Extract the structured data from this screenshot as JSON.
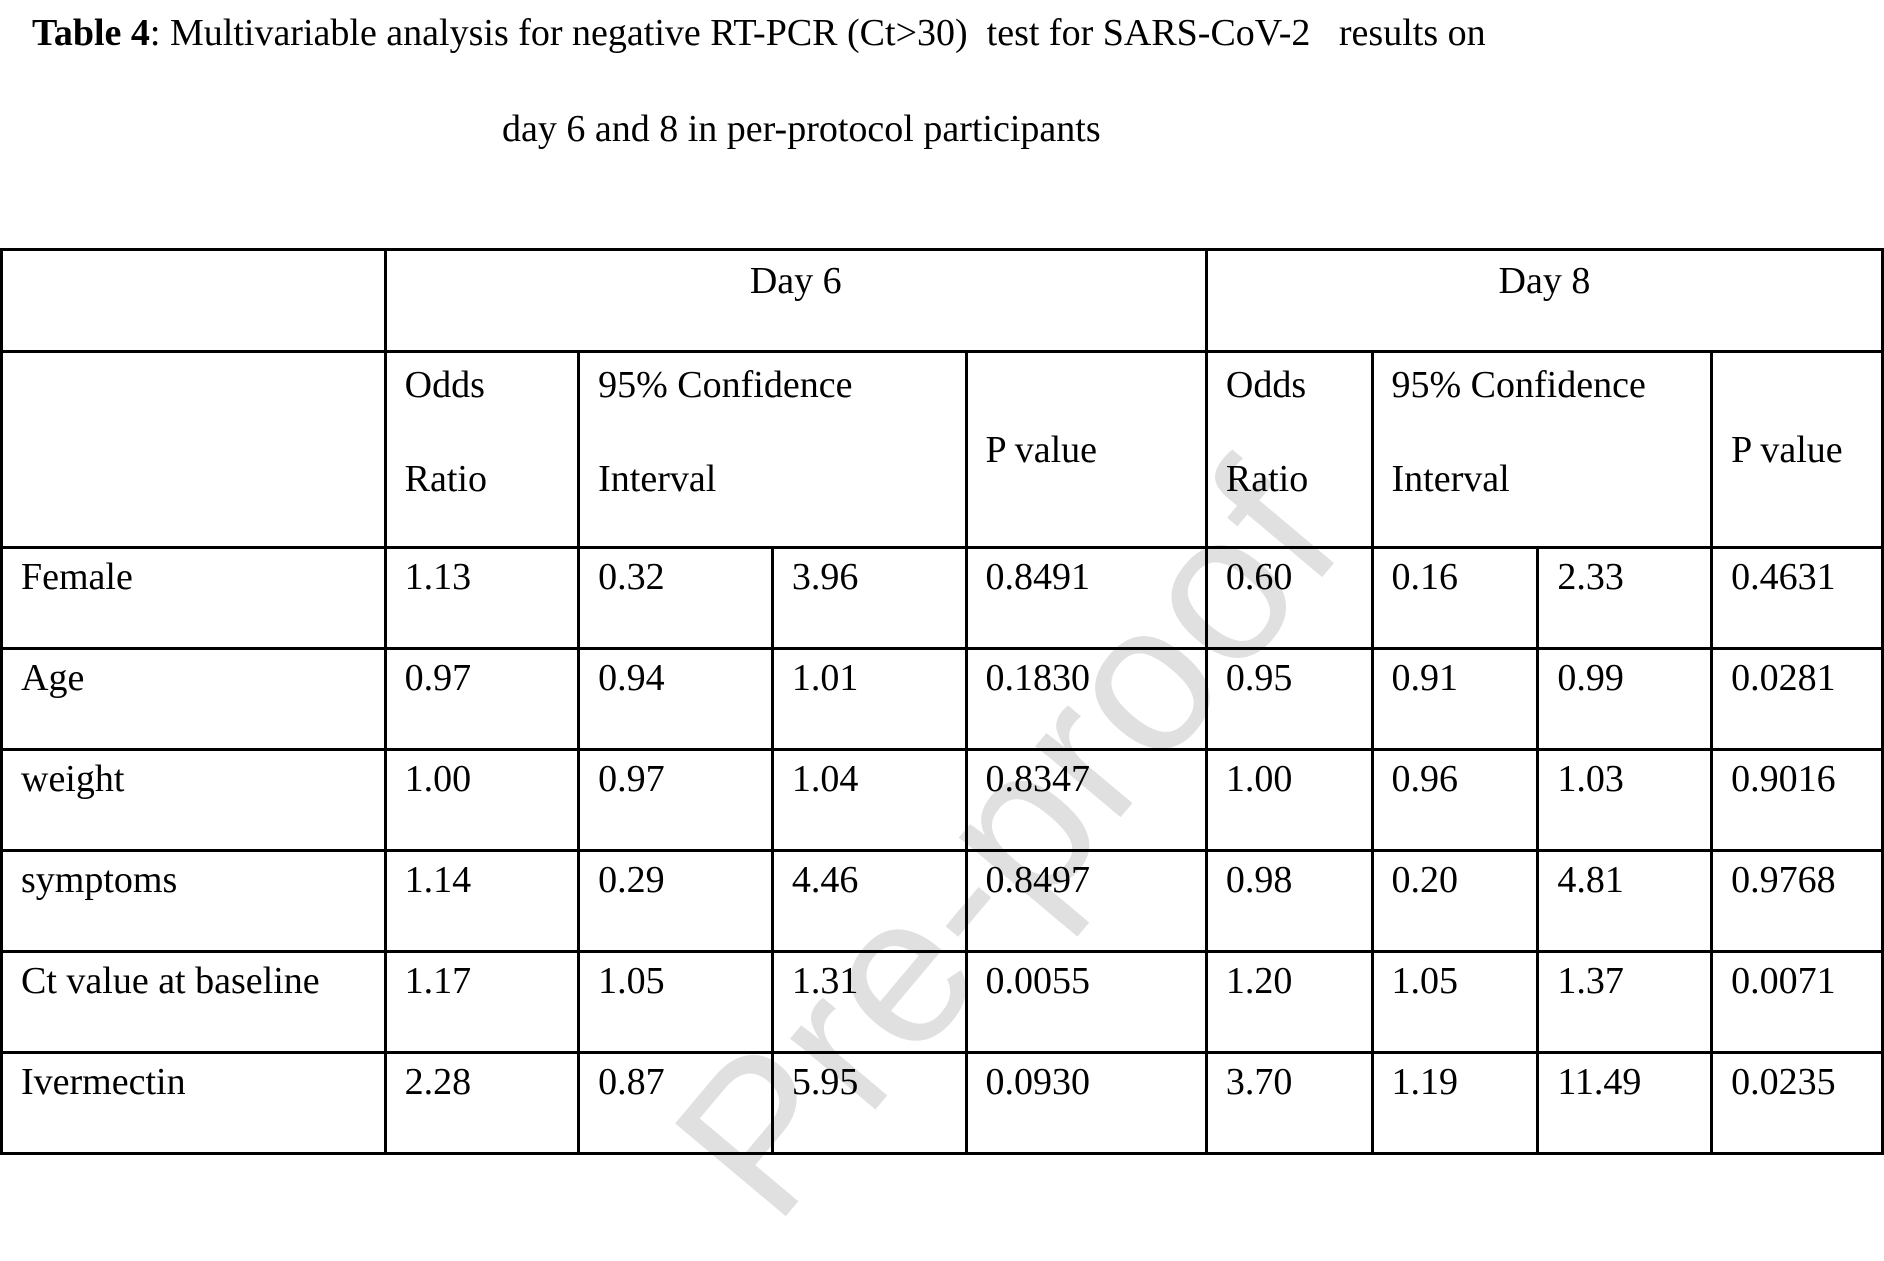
{
  "caption": {
    "label": "Table 4",
    "text_line1": ": Multivariable analysis for negative RT-PCR (Ct>30)  test for SARS-CoV-2   results on",
    "text_line2": "day 6 and 8 in per-protocol participants"
  },
  "table": {
    "group_headers": [
      "Day 6",
      "Day 8"
    ],
    "sub_headers": {
      "odds_ratio": [
        "Odds",
        "Ratio"
      ],
      "ci": [
        "95% Confidence",
        "Interval"
      ],
      "p_value": "P value"
    },
    "rows": [
      {
        "label": "Female",
        "d6": [
          "1.13",
          "0.32",
          "3.96",
          "0.8491"
        ],
        "d8": [
          "0.60",
          "0.16",
          "2.33",
          "0.4631"
        ]
      },
      {
        "label": "Age",
        "d6": [
          "0.97",
          "0.94",
          "1.01",
          "0.1830"
        ],
        "d8": [
          "0.95",
          "0.91",
          "0.99",
          "0.0281"
        ]
      },
      {
        "label": "weight",
        "d6": [
          "1.00",
          "0.97",
          "1.04",
          "0.8347"
        ],
        "d8": [
          "1.00",
          "0.96",
          "1.03",
          "0.9016"
        ]
      },
      {
        "label": "symptoms",
        "d6": [
          "1.14",
          "0.29",
          "4.46",
          "0.8497"
        ],
        "d8": [
          "0.98",
          "0.20",
          "4.81",
          "0.9768"
        ]
      },
      {
        "label": "Ct value at baseline",
        "d6": [
          "1.17",
          "1.05",
          "1.31",
          "0.0055"
        ],
        "d8": [
          "1.20",
          "1.05",
          "1.37",
          "0.0071"
        ]
      },
      {
        "label": "Ivermectin",
        "d6": [
          "2.28",
          "0.87",
          "5.95",
          "0.0930"
        ],
        "d8": [
          "3.70",
          "1.19",
          "11.49",
          "0.0235"
        ]
      }
    ]
  },
  "watermark": "Pre-proof"
}
